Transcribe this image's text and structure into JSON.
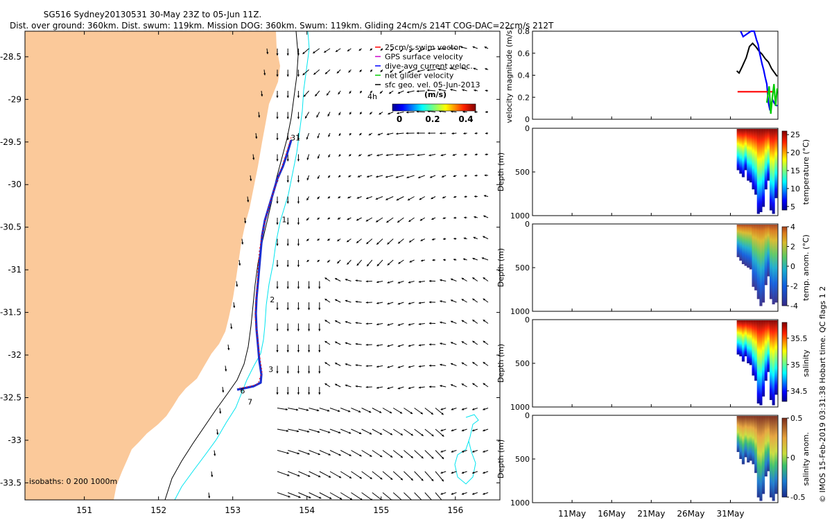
{
  "header": {
    "line1": "SG516 Sydney20130531 30-May 23Z to 05-Jun 11Z.",
    "line2": "Dist. over ground: 360km. Dist. swum: 119km. Mission DOG: 360km. Swum: 119km. Gliding 24cm/s 214T COG-DAC=22cm/s 212T"
  },
  "credit": "© IMOS 15-Feb-2019 03:31:38 Hobart time. QC flags 1 2",
  "colors": {
    "land": "#fbc99a",
    "isobath": "#000000",
    "isobath_shelf": "#00e5f0",
    "track": "#1a2fd0",
    "swim": "#ff0000",
    "gps": "#cc00cc",
    "dac": "#0000ff",
    "net": "#00cc00",
    "geo": "#000000"
  },
  "chart_data": [
    {
      "type": "map",
      "x_ticks": [
        "151",
        "152",
        "153",
        "154",
        "155",
        "156"
      ],
      "y_ticks": [
        "-28.5",
        "-29",
        "-29.5",
        "-30",
        "-30.5",
        "-31",
        "-31.5",
        "-32",
        "-32.5",
        "-33",
        "-33.5"
      ],
      "xlim": [
        150.2,
        156.6
      ],
      "ylim": [
        -33.7,
        -28.2
      ],
      "legend": [
        {
          "label": "25cm/s swim vector",
          "color": "#ff0000"
        },
        {
          "label": "GPS surface velocity",
          "color": "#cc00cc"
        },
        {
          "label": "dive-avg current veloc.",
          "color": "#0000ff"
        },
        {
          "label": "net glider velocity",
          "color": "#00cc00"
        },
        {
          "label": "sfc geo. vel. 05-Jun-2013",
          "color": "#000000"
        }
      ],
      "legend_placement": "top-right",
      "colorbar": {
        "label": "(m/s)",
        "ticks": [
          "0",
          "0.2",
          "0.4"
        ],
        "range": [
          0,
          0.5
        ],
        "note": "4h"
      },
      "isobath_label": "isobaths: 0   200   1000m",
      "track_labels": [
        {
          "text": "31",
          "lon": 153.78,
          "lat": -29.48
        },
        {
          "text": "1",
          "lon": 153.66,
          "lat": -30.44
        },
        {
          "text": "2",
          "lon": 153.5,
          "lat": -31.38
        },
        {
          "text": "3",
          "lon": 153.48,
          "lat": -32.2
        },
        {
          "text": "6",
          "lon": 153.1,
          "lat": -32.45
        },
        {
          "text": "7",
          "lon": 153.2,
          "lat": -32.58
        }
      ]
    },
    {
      "type": "line",
      "ylabel": "velocity magnitude (m/s)",
      "ylim": [
        0,
        0.8
      ],
      "y_ticks": [
        "0",
        "0.2",
        "0.4",
        "0.6",
        "0.8"
      ],
      "x_ticks": [
        "11May",
        "16May",
        "21May",
        "26May",
        "31May"
      ],
      "xlim": [
        6,
        37
      ],
      "series": [
        {
          "color": "#000000",
          "x": [
            31.8,
            32.1,
            32.5,
            33.0,
            33.4,
            33.8,
            34.2,
            34.6,
            35.0,
            35.4,
            35.8,
            36.2,
            36.6,
            36.9
          ],
          "y": [
            0.44,
            0.42,
            0.48,
            0.56,
            0.66,
            0.69,
            0.66,
            0.62,
            0.59,
            0.55,
            0.52,
            0.46,
            0.42,
            0.39
          ]
        },
        {
          "color": "#0000ff",
          "x": [
            32.3,
            32.6,
            33.6,
            34.0,
            34.3,
            34.5,
            34.7,
            35.0,
            35.2,
            35.4,
            35.6,
            35.8,
            36.0,
            36.3,
            36.6,
            36.9
          ],
          "y": [
            0.8,
            0.75,
            0.8,
            0.8,
            0.72,
            0.68,
            0.6,
            0.5,
            0.45,
            0.38,
            0.32,
            0.15,
            0.08,
            0.18,
            0.14,
            0.12
          ]
        },
        {
          "color": "#ff0000",
          "x": [
            31.9,
            33.0,
            34.0,
            35.0,
            36.6
          ],
          "y": [
            0.25,
            0.25,
            0.25,
            0.25,
            0.25
          ]
        },
        {
          "color": "#00cc00",
          "x": [
            35.6,
            35.9,
            36.1,
            36.3,
            36.5,
            36.7,
            36.9
          ],
          "y": [
            0.15,
            0.3,
            0.05,
            0.2,
            0.32,
            0.12,
            0.28
          ]
        }
      ]
    },
    {
      "type": "heatmap",
      "ylabel": "Depth (m)",
      "ylim": [
        1000,
        0
      ],
      "y_ticks": [
        "0",
        "500",
        "1000"
      ],
      "colorbar_label": "temperature (°C)",
      "colorbar_ticks": [
        "5",
        "10",
        "15",
        "20",
        "25"
      ],
      "clim": [
        4,
        26
      ],
      "x_start": 31.8,
      "x_end": 36.9,
      "max_depth": [
        480,
        520,
        560,
        480,
        600,
        620,
        700,
        760,
        980,
        960,
        900,
        700,
        600,
        940,
        980,
        800
      ]
    },
    {
      "type": "heatmap",
      "ylabel": "Depth (m)",
      "ylim": [
        1000,
        0
      ],
      "y_ticks": [
        "0",
        "500",
        "1000"
      ],
      "colorbar_label": "temp. anom. (°C)",
      "colorbar_ticks": [
        "-4",
        "-2",
        "0",
        "2",
        "4"
      ],
      "clim": [
        -4,
        4
      ],
      "x_start": 31.8,
      "x_end": 36.9,
      "max_depth": [
        380,
        420,
        460,
        480,
        500,
        520,
        720,
        760,
        860,
        940,
        900,
        700,
        600,
        860,
        920,
        900
      ]
    },
    {
      "type": "heatmap",
      "ylabel": "Depth (m)",
      "ylim": [
        1000,
        0
      ],
      "y_ticks": [
        "0",
        "500",
        "1000"
      ],
      "colorbar_label": "salinity",
      "colorbar_ticks": [
        "34.5",
        "35",
        "35.5"
      ],
      "clim": [
        34.3,
        35.8
      ],
      "x_start": 31.8,
      "x_end": 36.9,
      "max_depth": [
        400,
        420,
        480,
        420,
        500,
        520,
        640,
        700,
        960,
        980,
        880,
        700,
        600,
        920,
        980,
        860
      ]
    },
    {
      "type": "heatmap",
      "ylabel": "Depth (m)",
      "ylim": [
        1000,
        0
      ],
      "y_ticks": [
        "0",
        "500",
        "1000"
      ],
      "colorbar_label": "salinity anom.",
      "colorbar_ticks": [
        "-0.5",
        "0",
        "0.5"
      ],
      "clim": [
        -0.5,
        0.5
      ],
      "x_start": 31.8,
      "x_end": 36.9,
      "max_depth": [
        420,
        500,
        560,
        480,
        540,
        520,
        560,
        660,
        940,
        980,
        900,
        700,
        640,
        940,
        980,
        900
      ]
    }
  ]
}
